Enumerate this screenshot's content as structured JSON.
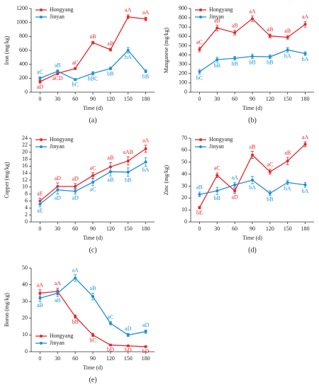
{
  "chart_data": [
    {
      "type": "line",
      "caption": "(a)",
      "xlabel": "Time (d)",
      "ylabel": "Iron (mg/kg)",
      "x": [
        0,
        30,
        60,
        90,
        120,
        150,
        180
      ],
      "xlim": [
        -15,
        195
      ],
      "xticks": [
        0,
        30,
        60,
        90,
        120,
        150,
        180
      ],
      "ylim": [
        0,
        1200
      ],
      "yticks": [
        0,
        200,
        400,
        600,
        800,
        1000,
        1200
      ],
      "legend": "upper left",
      "series": [
        {
          "name": "Hongyang",
          "color": "#e8252a",
          "values": [
            150,
            270,
            340,
            710,
            610,
            1080,
            1050
          ],
          "errors": [
            20,
            20,
            15,
            20,
            20,
            30,
            25
          ],
          "significance": [
            "aD",
            "aCD",
            "aC",
            "aB",
            "aB",
            "aA",
            "aA"
          ]
        },
        {
          "name": "Jinyan",
          "color": "#1f8fd6",
          "values": [
            200,
            300,
            180,
            270,
            340,
            600,
            300
          ],
          "errors": [
            20,
            20,
            15,
            25,
            20,
            40,
            20
          ],
          "significance": [
            "aC",
            "aB",
            "bC",
            "bBC",
            "bB",
            "bA",
            "bB"
          ]
        }
      ]
    },
    {
      "type": "line",
      "caption": "(b)",
      "xlabel": "Time (d)",
      "ylabel": "Manganese (mg/kg)",
      "x": [
        0,
        30,
        60,
        90,
        120,
        150,
        180
      ],
      "xlim": [
        -15,
        195
      ],
      "xticks": [
        0,
        30,
        60,
        90,
        120,
        150,
        180
      ],
      "ylim": [
        0,
        900
      ],
      "yticks": [
        0,
        100,
        200,
        300,
        400,
        500,
        600,
        700,
        800,
        900
      ],
      "legend": "upper left",
      "series": [
        {
          "name": "Hongyang",
          "color": "#e8252a",
          "values": [
            460,
            690,
            640,
            790,
            605,
            590,
            730
          ],
          "errors": [
            25,
            30,
            25,
            30,
            20,
            20,
            30
          ],
          "significance": [
            "aC",
            "aB",
            "aB",
            "aA",
            "aB",
            "aB",
            "aA"
          ]
        },
        {
          "name": "Jinyan",
          "color": "#1f8fd6",
          "values": [
            220,
            350,
            365,
            385,
            380,
            455,
            415
          ],
          "errors": [
            25,
            25,
            20,
            25,
            20,
            25,
            20
          ],
          "significance": [
            "bC",
            "bB",
            "bB",
            "bB",
            "bB",
            "bA",
            "bA"
          ]
        }
      ]
    },
    {
      "type": "line",
      "caption": "(c)",
      "xlabel": "Time (d)",
      "ylabel": "Copper (mg/kg)",
      "x": [
        0,
        30,
        60,
        90,
        120,
        150,
        180
      ],
      "xlim": [
        -15,
        195
      ],
      "xticks": [
        0,
        30,
        60,
        90,
        120,
        150,
        180
      ],
      "ylim": [
        0,
        24
      ],
      "yticks": [
        0,
        2,
        4,
        6,
        8,
        10,
        12,
        14,
        16,
        18,
        20,
        22,
        24
      ],
      "legend": "upper left",
      "series": [
        {
          "name": "Hongyang",
          "color": "#e8252a",
          "values": [
            6,
            10.2,
            10.2,
            13.3,
            15.8,
            17.5,
            21
          ],
          "errors": [
            0.8,
            1,
            0.8,
            0.8,
            1.2,
            1.2,
            1
          ],
          "significance": [
            "aE",
            "aD",
            "aD",
            "aC",
            "aB",
            "aAB",
            "aA"
          ]
        },
        {
          "name": "Jinyan",
          "color": "#1f8fd6",
          "values": [
            5.1,
            9.2,
            8.8,
            11.4,
            14.4,
            14.3,
            17.2
          ],
          "errors": [
            0.8,
            1.2,
            0.8,
            1,
            1.2,
            1.2,
            1.2
          ],
          "significance": [
            "aE",
            "aD",
            "aD",
            "aC",
            "aB",
            "bB",
            "bA"
          ]
        }
      ]
    },
    {
      "type": "line",
      "caption": "(d)",
      "xlabel": "Time (d)",
      "ylabel": "Zinc (mg/kg)",
      "x": [
        0,
        30,
        60,
        90,
        120,
        150,
        180
      ],
      "xlim": [
        -15,
        195
      ],
      "xticks": [
        0,
        30,
        60,
        90,
        120,
        150,
        180
      ],
      "ylim": [
        0,
        70
      ],
      "yticks": [
        0,
        10,
        20,
        30,
        40,
        50,
        60,
        70
      ],
      "legend": "upper left",
      "series": [
        {
          "name": "Hongyang",
          "color": "#e8252a",
          "values": [
            12,
            39,
            26,
            56,
            42,
            51,
            65
          ],
          "errors": [
            1,
            2,
            2,
            3,
            2,
            3,
            2
          ],
          "significance": [
            "bE",
            "aC",
            "aD",
            "aB",
            "aC",
            "aB",
            "aA"
          ]
        },
        {
          "name": "Jinyan",
          "color": "#1f8fd6",
          "values": [
            23,
            26,
            31,
            35,
            24,
            33,
            31
          ],
          "errors": [
            2,
            3,
            2,
            3,
            2,
            2,
            2
          ],
          "significance": [
            "aB",
            "bB",
            "aA",
            "bA",
            "bB",
            "bA",
            "bA"
          ]
        }
      ]
    },
    {
      "type": "line",
      "caption": "(e)",
      "xlabel": "Time (d)",
      "ylabel": "Boron (mg/kg)",
      "x": [
        0,
        30,
        60,
        90,
        120,
        150,
        180
      ],
      "xlim": [
        -15,
        195
      ],
      "xticks": [
        0,
        30,
        60,
        90,
        120,
        150,
        180
      ],
      "ylim": [
        0,
        50
      ],
      "yticks": [
        0,
        10,
        20,
        30,
        40,
        50
      ],
      "legend": "lower left",
      "series": [
        {
          "name": "Hongyang",
          "color": "#e8252a",
          "values": [
            35,
            36,
            21,
            10,
            4,
            3.5,
            3
          ],
          "errors": [
            2,
            2,
            1,
            1,
            0.5,
            0.5,
            0.5
          ],
          "significance": [
            "aA",
            "aA",
            "bB",
            "bC",
            "bD",
            "bD",
            "bD"
          ]
        },
        {
          "name": "Jinyan",
          "color": "#1f8fd6",
          "values": [
            32,
            35,
            44,
            33,
            17,
            10,
            12
          ],
          "errors": [
            2,
            2,
            2,
            2,
            1,
            1,
            1
          ],
          "significance": [
            "aB",
            "aB",
            "aA",
            "aB",
            "aC",
            "aD",
            "aD"
          ]
        }
      ]
    }
  ]
}
